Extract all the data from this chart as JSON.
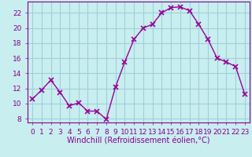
{
  "x": [
    0,
    1,
    2,
    3,
    4,
    5,
    6,
    7,
    8,
    9,
    10,
    11,
    12,
    13,
    14,
    15,
    16,
    17,
    18,
    19,
    20,
    21,
    22,
    23
  ],
  "y": [
    10.6,
    11.8,
    13.1,
    11.5,
    9.7,
    10.1,
    9.0,
    9.0,
    7.9,
    12.2,
    15.5,
    18.5,
    20.0,
    20.5,
    22.0,
    22.7,
    22.8,
    22.3,
    20.5,
    18.5,
    16.0,
    15.5,
    14.9,
    11.2
  ],
  "line_color": "#990099",
  "marker": "x",
  "markersize": 4,
  "markeredgewidth": 1.2,
  "linewidth": 1.0,
  "bg_color": "#c8eef0",
  "grid_color": "#a0d0d8",
  "xlabel": "Windchill (Refroidissement éolien,°C)",
  "xlabel_color": "#880088",
  "tick_color": "#880088",
  "spine_color": "#880088",
  "ylim": [
    7.5,
    23.5
  ],
  "yticks": [
    8,
    10,
    12,
    14,
    16,
    18,
    20,
    22
  ],
  "xlim": [
    -0.5,
    23.5
  ],
  "xticks": [
    0,
    1,
    2,
    3,
    4,
    5,
    6,
    7,
    8,
    9,
    10,
    11,
    12,
    13,
    14,
    15,
    16,
    17,
    18,
    19,
    20,
    21,
    22,
    23
  ],
  "xlabel_fontsize": 7,
  "tick_fontsize": 6.5
}
